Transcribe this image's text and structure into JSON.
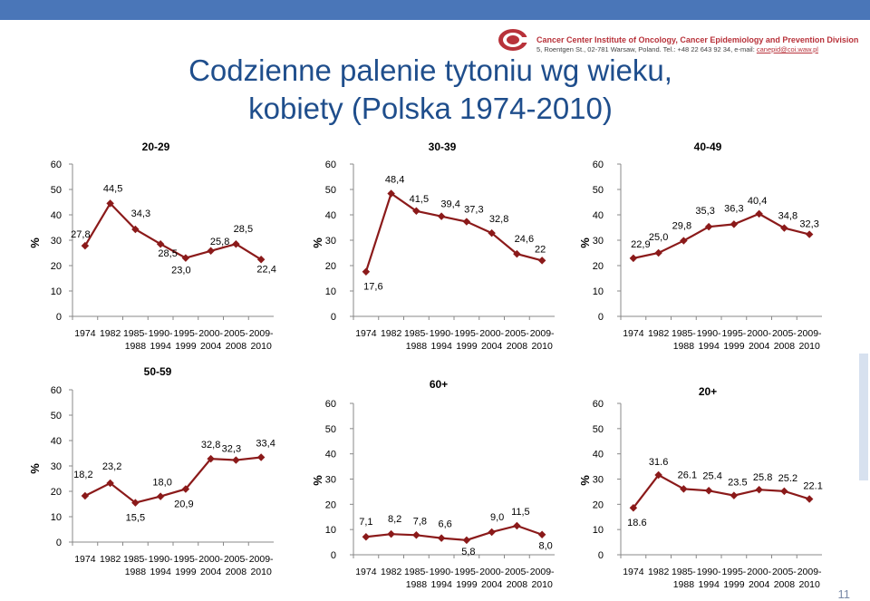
{
  "title_line1": "Codzienne palenie tytoniu wg wieku,",
  "title_line2": "kobiety (Polska 1974-2010)",
  "institute": {
    "name": "Cancer Center Institute of Oncology, Cancer Epidemiology and Prevention Division",
    "address": "5, Roentgen St., 02-781 Warsaw, Poland. Tel.: +48 22 643 92 34, e-mail:",
    "email": "canepid@coi.waw.pl"
  },
  "page_number": "11",
  "colors": {
    "line": "#8b1a1a",
    "axis": "#888888",
    "title": "#1f4e8c"
  },
  "chart_data": [
    {
      "type": "line",
      "title": "20-29",
      "ylabel": "%",
      "ylim": [
        0,
        60
      ],
      "yticks": [
        "0",
        "10",
        "20",
        "30",
        "40",
        "50",
        "60"
      ],
      "categories": [
        [
          "1974",
          ""
        ],
        [
          "1982",
          ""
        ],
        [
          "1985-",
          "1988"
        ],
        [
          "1990-",
          "1994"
        ],
        [
          "1995-",
          "1999"
        ],
        [
          "2000-",
          "2004"
        ],
        [
          "2005-",
          "2008"
        ],
        [
          "2009-",
          "2010"
        ]
      ],
      "values": [
        27.8,
        44.5,
        34.3,
        28.5,
        23.0,
        25.8,
        28.5,
        22.4
      ],
      "labels": [
        "27,8",
        "44,5",
        "34,3",
        "28,5",
        "23,0",
        "25,8",
        "28,5",
        "22,4"
      ]
    },
    {
      "type": "line",
      "title": "30-39",
      "ylabel": "%",
      "ylim": [
        0,
        60
      ],
      "yticks": [
        "0",
        "10",
        "20",
        "30",
        "40",
        "50",
        "60"
      ],
      "categories": [
        [
          "1974",
          ""
        ],
        [
          "1982",
          ""
        ],
        [
          "1985-",
          "1988"
        ],
        [
          "1990-",
          "1994"
        ],
        [
          "1995-",
          "1999"
        ],
        [
          "2000-",
          "2004"
        ],
        [
          "2005-",
          "2008"
        ],
        [
          "2009-",
          "2010"
        ]
      ],
      "values": [
        17.6,
        48.4,
        41.5,
        39.4,
        37.3,
        32.8,
        24.6,
        22
      ],
      "labels": [
        "17,6",
        "48,4",
        "41,5",
        "39,4",
        "37,3",
        "32,8",
        "24,6",
        "22"
      ]
    },
    {
      "type": "line",
      "title": "40-49",
      "ylabel": "%",
      "ylim": [
        0,
        60
      ],
      "yticks": [
        "0",
        "10",
        "20",
        "30",
        "40",
        "50",
        "60"
      ],
      "categories": [
        [
          "1974",
          ""
        ],
        [
          "1982",
          ""
        ],
        [
          "1985-",
          "1988"
        ],
        [
          "1990-",
          "1994"
        ],
        [
          "1995-",
          "1999"
        ],
        [
          "2000-",
          "2004"
        ],
        [
          "2005-",
          "2008"
        ],
        [
          "2009-",
          "2010"
        ]
      ],
      "values": [
        22.9,
        25.0,
        29.8,
        35.3,
        36.3,
        40.4,
        34.8,
        32.3
      ],
      "labels": [
        "22,9",
        "25,0",
        "29,8",
        "35,3",
        "36,3",
        "40,4",
        "34,8",
        "32,3"
      ]
    },
    {
      "type": "line",
      "title": "50-59",
      "ylabel": "%",
      "ylim": [
        0,
        60
      ],
      "yticks": [
        "0",
        "10",
        "20",
        "30",
        "40",
        "50",
        "60"
      ],
      "categories": [
        [
          "1974",
          ""
        ],
        [
          "1982",
          ""
        ],
        [
          "1985-",
          "1988"
        ],
        [
          "1990-",
          "1994"
        ],
        [
          "1995-",
          "1999"
        ],
        [
          "2000-",
          "2004"
        ],
        [
          "2005-",
          "2008"
        ],
        [
          "2009-",
          "2010"
        ]
      ],
      "values": [
        18.2,
        23.2,
        15.5,
        18.0,
        20.9,
        32.8,
        32.3,
        33.4
      ],
      "labels": [
        "18,2",
        "23,2",
        "15,5",
        "18,0",
        "20,9",
        "32,8",
        "32,3",
        "33,4"
      ]
    },
    {
      "type": "line",
      "title": "60+",
      "ylabel": "%",
      "ylim": [
        0,
        60
      ],
      "yticks": [
        "0",
        "10",
        "20",
        "30",
        "40",
        "50",
        "60"
      ],
      "categories": [
        [
          "1974",
          ""
        ],
        [
          "1982",
          ""
        ],
        [
          "1985-",
          "1988"
        ],
        [
          "1990-",
          "1994"
        ],
        [
          "1995-",
          "1999"
        ],
        [
          "2000-",
          "2004"
        ],
        [
          "2005-",
          "2008"
        ],
        [
          "2009-",
          "2010"
        ]
      ],
      "values": [
        7.1,
        8.2,
        7.8,
        6.6,
        5.8,
        9.0,
        11.5,
        8.0
      ],
      "labels": [
        "7,1",
        "8,2",
        "7,8",
        "6,6",
        "5,8",
        "9,0",
        "11,5",
        "8,0"
      ]
    },
    {
      "type": "line",
      "title": "20+",
      "ylabel": "%",
      "ylim": [
        0,
        60
      ],
      "yticks": [
        "0",
        "10",
        "20",
        "30",
        "40",
        "50",
        "60"
      ],
      "categories": [
        [
          "1974",
          ""
        ],
        [
          "1982",
          ""
        ],
        [
          "1985-",
          "1988"
        ],
        [
          "1990-",
          "1994"
        ],
        [
          "1995-",
          "1999"
        ],
        [
          "2000-",
          "2004"
        ],
        [
          "2005-",
          "2008"
        ],
        [
          "2009-",
          "2010"
        ]
      ],
      "values": [
        18.6,
        31.6,
        26.1,
        25.4,
        23.5,
        25.8,
        25.2,
        22.1
      ],
      "labels": [
        "18.6",
        "31.6",
        "26.1",
        "25.4",
        "23.5",
        "25.8",
        "25.2",
        "22.1"
      ]
    }
  ]
}
